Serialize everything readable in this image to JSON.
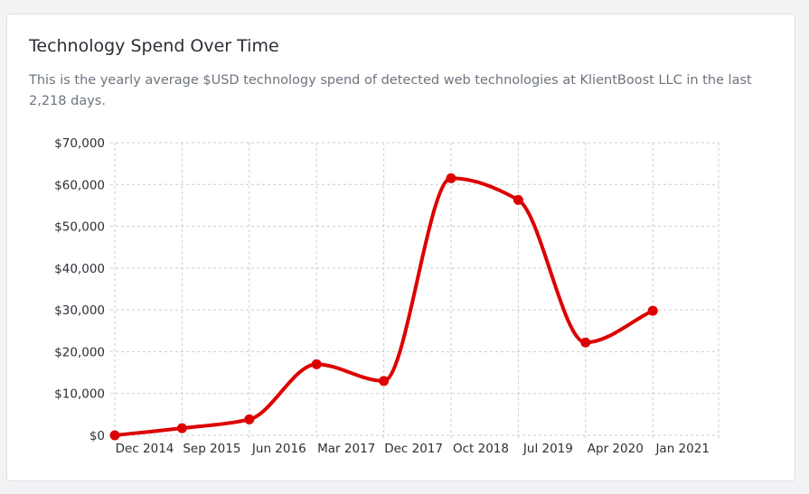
{
  "card": {
    "title": "Technology Spend Over Time",
    "subtitle": "This is the yearly average $USD technology spend of detected web technologies at KlientBoost LLC in the last 2,218 days."
  },
  "chart_data": {
    "type": "line",
    "title": "Technology Spend Over Time",
    "xlabel": "",
    "ylabel": "",
    "categories": [
      "Dec 2014",
      "Sep 2015",
      "Jun 2016",
      "Mar 2017",
      "Dec 2017",
      "Oct 2018",
      "Jul 2019",
      "Apr 2020",
      "Jan 2021"
    ],
    "series": [
      {
        "values": [
          0,
          1700,
          3800,
          17000,
          13000,
          61500,
          56300,
          22200,
          29800
        ]
      }
    ],
    "y_ticks": [
      "$0",
      "$10,000",
      "$20,000",
      "$30,000",
      "$40,000",
      "$50,000",
      "$60,000",
      "$70,000"
    ],
    "ylim": [
      0,
      70000
    ],
    "grid": true,
    "legend": "none",
    "colors": {
      "line": "#dd0000",
      "grid": "#cccccc"
    }
  }
}
